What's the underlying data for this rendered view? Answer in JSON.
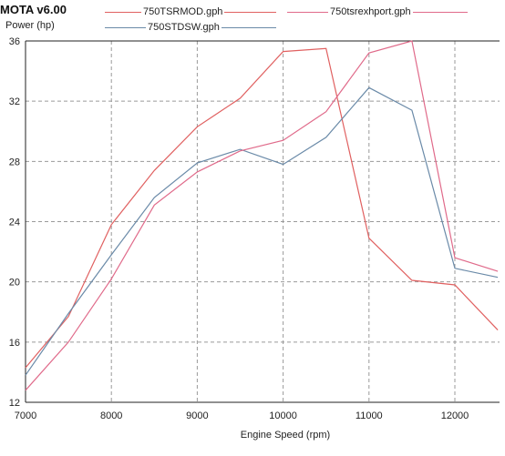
{
  "app": {
    "title": "MOTA v6.00"
  },
  "chart_data": {
    "type": "line",
    "ylabel": "Power (hp)",
    "xlabel": "Engine Speed (rpm)",
    "xlim": [
      7000,
      12500
    ],
    "ylim": [
      12,
      36
    ],
    "x_ticks": [
      7000,
      8000,
      9000,
      10000,
      11000,
      12000
    ],
    "y_ticks": [
      12,
      16,
      20,
      24,
      28,
      32,
      36
    ],
    "grid": true,
    "legend_position": "top",
    "x": [
      7000,
      7500,
      8000,
      8500,
      9000,
      9500,
      10000,
      10500,
      11000,
      11500,
      12000,
      12500
    ],
    "series": [
      {
        "name": "750TSRMOD.gph",
        "color": "#e06060",
        "values": [
          14.3,
          17.7,
          23.8,
          27.4,
          30.3,
          32.2,
          35.3,
          35.5,
          22.9,
          20.1,
          19.8,
          16.8
        ]
      },
      {
        "name": "750STDSW.gph",
        "color": "#6a8aa8",
        "values": [
          13.8,
          17.9,
          21.8,
          25.6,
          27.9,
          28.8,
          27.8,
          29.6,
          32.9,
          31.4,
          20.9,
          20.3
        ]
      },
      {
        "name": "750tsrexhport.gph",
        "color": "#e06a8a",
        "values": [
          12.8,
          16.0,
          20.2,
          25.1,
          27.3,
          28.7,
          29.4,
          31.3,
          35.2,
          36.0,
          21.6,
          20.7
        ]
      }
    ]
  }
}
